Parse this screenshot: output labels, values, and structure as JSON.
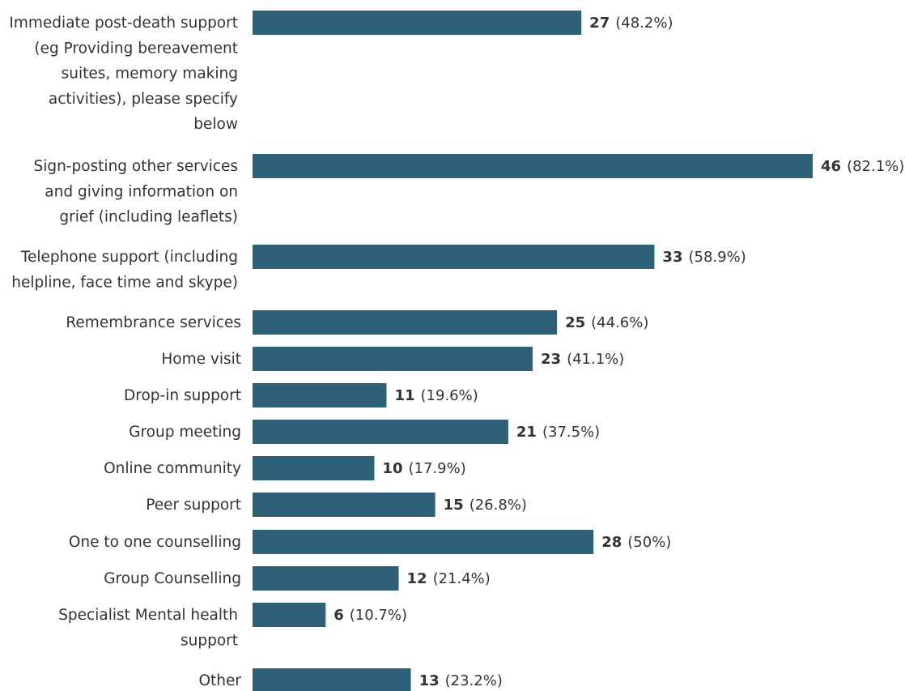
{
  "chart_data": {
    "type": "bar",
    "orientation": "horizontal",
    "categories": [
      [
        "Immediate post-death support",
        "(eg Providing bereavement",
        "suites, memory making",
        "activities), please specify",
        "below"
      ],
      [
        "Sign-posting other services",
        "and giving information on",
        "grief (including leaflets)"
      ],
      [
        "Telephone support (including",
        "helpline, face time and skype)"
      ],
      [
        "Remembrance services"
      ],
      [
        "Home visit"
      ],
      [
        "Drop-in support"
      ],
      [
        "Group meeting"
      ],
      [
        "Online community"
      ],
      [
        "Peer support"
      ],
      [
        "One to one counselling"
      ],
      [
        "Group Counselling"
      ],
      [
        "Specialist Mental health",
        "support"
      ],
      [
        "Other"
      ]
    ],
    "values": [
      27,
      46,
      33,
      25,
      23,
      11,
      21,
      10,
      15,
      28,
      12,
      6,
      13
    ],
    "value_labels": [
      "27",
      "46",
      "33",
      "25",
      "23",
      "11",
      "21",
      "10",
      "15",
      "28",
      "12",
      "6",
      "13"
    ],
    "percent_labels": [
      "(48.2%)",
      "(82.1%)",
      "(58.9%)",
      "(44.6%)",
      "(41.1%)",
      "(19.6%)",
      "(37.5%)",
      "(17.9%)",
      "(26.8%)",
      "(50%)",
      "(21.4%)",
      "(10.7%)",
      "(23.2%)"
    ],
    "bar_color": "#2e6078",
    "grid": false,
    "legend": "none"
  }
}
